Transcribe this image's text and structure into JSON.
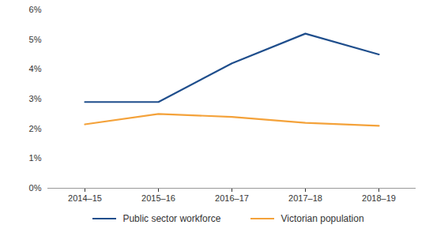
{
  "chart_data": {
    "type": "line",
    "categories": [
      "2014–15",
      "2015–16",
      "2016–17",
      "2017–18",
      "2018–19"
    ],
    "series": [
      {
        "name": "Public sector workforce",
        "color": "#1f4e8c",
        "values": [
          2.9,
          2.9,
          4.2,
          5.2,
          4.5
        ]
      },
      {
        "name": "Victorian population",
        "color": "#f4a23a",
        "values": [
          2.15,
          2.5,
          2.4,
          2.2,
          2.1
        ]
      }
    ],
    "ylim": [
      0,
      6
    ],
    "yticks": [
      {
        "value": 0,
        "label": "0%"
      },
      {
        "value": 1,
        "label": "1%"
      },
      {
        "value": 2,
        "label": "2%"
      },
      {
        "value": 3,
        "label": "3%"
      },
      {
        "value": 4,
        "label": "4%"
      },
      {
        "value": 5,
        "label": "5%"
      },
      {
        "value": 6,
        "label": "6%"
      }
    ],
    "grid": false,
    "legend": "bottom"
  }
}
